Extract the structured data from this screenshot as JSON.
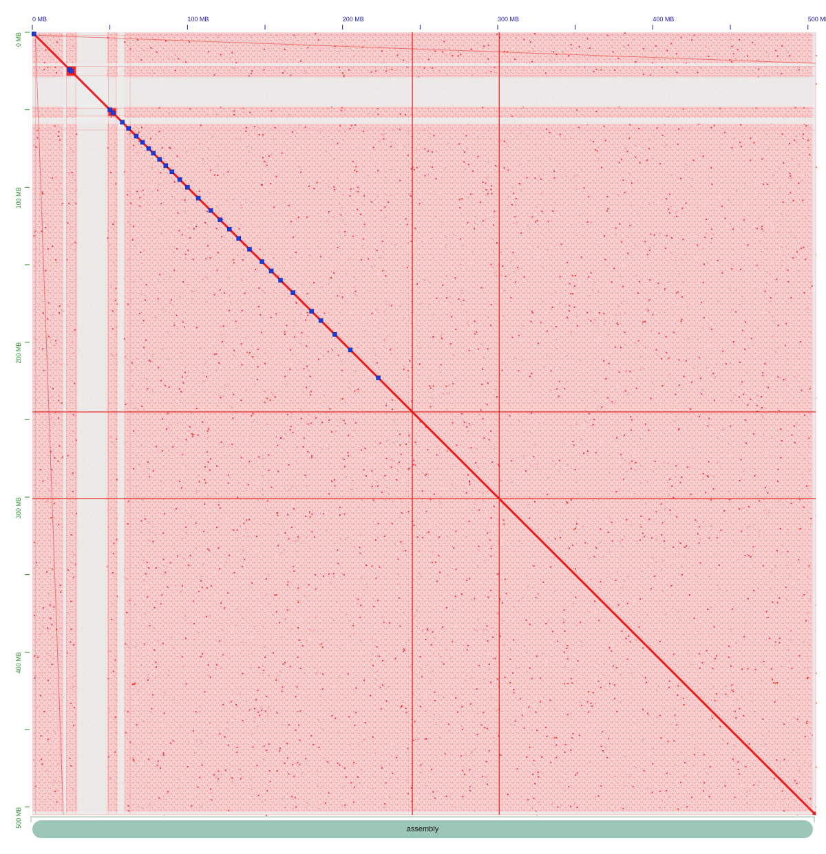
{
  "chart_data": {
    "type": "heatmap",
    "title": "",
    "xlabel": "",
    "ylabel": "",
    "xlim": [
      0,
      505
    ],
    "ylim": [
      0,
      505
    ],
    "x_ticks": [
      {
        "value": 0,
        "label": "0 MB"
      },
      {
        "value": 50,
        "label": ""
      },
      {
        "value": 100,
        "label": "100 MB"
      },
      {
        "value": 150,
        "label": ""
      },
      {
        "value": 200,
        "label": "200 MB"
      },
      {
        "value": 250,
        "label": ""
      },
      {
        "value": 300,
        "label": "300 MB"
      },
      {
        "value": 350,
        "label": ""
      },
      {
        "value": 400,
        "label": "400 MB"
      },
      {
        "value": 450,
        "label": ""
      },
      {
        "value": 500,
        "label": "500 MB"
      }
    ],
    "y_ticks": [
      {
        "value": 0,
        "label": "0 MB"
      },
      {
        "value": 50,
        "label": ""
      },
      {
        "value": 100,
        "label": "100 MB"
      },
      {
        "value": 150,
        "label": ""
      },
      {
        "value": 200,
        "label": "200 MB"
      },
      {
        "value": 250,
        "label": ""
      },
      {
        "value": 300,
        "label": "300 MB"
      },
      {
        "value": 350,
        "label": ""
      },
      {
        "value": 400,
        "label": "400 MB"
      },
      {
        "value": 450,
        "label": ""
      },
      {
        "value": 500,
        "label": "500 MB"
      }
    ],
    "scaffold_boundaries_mb": [
      2,
      22,
      28,
      49,
      54,
      63,
      245,
      301,
      505
    ],
    "empty_bands_mb": [
      [
        20,
        22
      ],
      [
        29,
        48
      ],
      [
        55,
        59
      ],
      [
        503,
        505
      ]
    ],
    "strong_lines_mb": [
      245,
      301
    ],
    "scaffold_blocks_on_diagonal_mb": [
      1,
      24,
      25,
      50,
      52,
      58,
      62,
      67,
      71,
      75,
      78,
      82,
      86,
      90,
      95,
      100,
      107,
      115,
      121,
      127,
      133,
      140,
      148,
      154,
      160,
      168,
      180,
      186,
      195,
      205,
      223
    ],
    "secondary_diagonal": true,
    "colors": {
      "background": "#ececec",
      "contact_low": "#fbdcdc",
      "contact_mid": "#f59595",
      "contact_high": "#ee1c1c",
      "scaffold_block": "#1b3bd6",
      "x_axis": "#1a1aa6",
      "y_axis": "#2e8b2e",
      "assembly_bar": "#9cc7b8"
    }
  },
  "assembly": {
    "label": "assembly"
  }
}
